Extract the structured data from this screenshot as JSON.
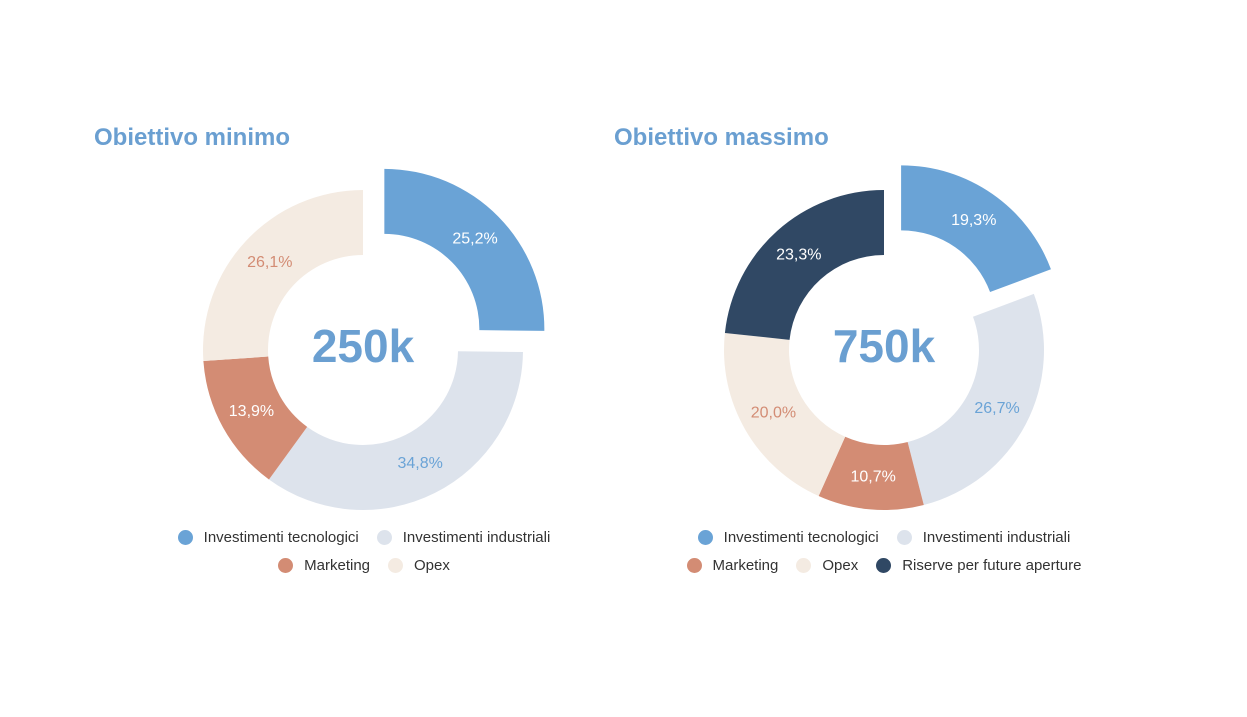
{
  "colors": {
    "investimenti_tecnologici": "#6aa3d6",
    "investimenti_industriali": "#dde3ec",
    "marketing": "#d38c74",
    "opex": "#f4ebe2",
    "riserve": "#304864"
  },
  "legend_labels": {
    "investimenti_tecnologici": "Investimenti tecnologici",
    "investimenti_industriali": "Investimenti industriali",
    "marketing": "Marketing",
    "opex": "Opex",
    "riserve": "Riserve per future aperture"
  },
  "chart_data": [
    {
      "type": "pie",
      "title": "Obiettivo minimo",
      "center_text": "250k",
      "slices": [
        {
          "key": "investimenti_tecnologici",
          "label": "Investimenti tecnologici",
          "value": 25.2,
          "value_label": "25,2%",
          "exploded": true,
          "label_color": "#ffffff"
        },
        {
          "key": "investimenti_industriali",
          "label": "Investimenti industriali",
          "value": 34.8,
          "value_label": "34,8%",
          "exploded": false,
          "label_color": "#6aa3d6"
        },
        {
          "key": "marketing",
          "label": "Marketing",
          "value": 13.9,
          "value_label": "13,9%",
          "exploded": false,
          "label_color": "#ffffff"
        },
        {
          "key": "opex",
          "label": "Opex",
          "value": 26.1,
          "value_label": "26,1%",
          "exploded": false,
          "label_color": "#d38c74"
        }
      ],
      "legend_rows": [
        [
          "investimenti_tecnologici",
          "investimenti_industriali"
        ],
        [
          "marketing",
          "opex"
        ]
      ]
    },
    {
      "type": "pie",
      "title": "Obiettivo massimo",
      "center_text": "750k",
      "slices": [
        {
          "key": "investimenti_tecnologici",
          "label": "Investimenti tecnologici",
          "value": 19.3,
          "value_label": "19,3%",
          "exploded": true,
          "label_color": "#ffffff"
        },
        {
          "key": "investimenti_industriali",
          "label": "Investimenti industriali",
          "value": 26.7,
          "value_label": "26,7%",
          "exploded": false,
          "label_color": "#6aa3d6"
        },
        {
          "key": "marketing",
          "label": "Marketing",
          "value": 10.7,
          "value_label": "10,7%",
          "exploded": false,
          "label_color": "#ffffff"
        },
        {
          "key": "opex",
          "label": "Opex",
          "value": 20.0,
          "value_label": "20,0%",
          "exploded": false,
          "label_color": "#d38c74"
        },
        {
          "key": "riserve",
          "label": "Riserve per future aperture",
          "value": 23.3,
          "value_label": "23,3%",
          "exploded": false,
          "label_color": "#ffffff"
        }
      ],
      "legend_rows": [
        [
          "investimenti_tecnologici",
          "investimenti_industriali"
        ],
        [
          "marketing",
          "opex",
          "riserve"
        ]
      ]
    }
  ]
}
